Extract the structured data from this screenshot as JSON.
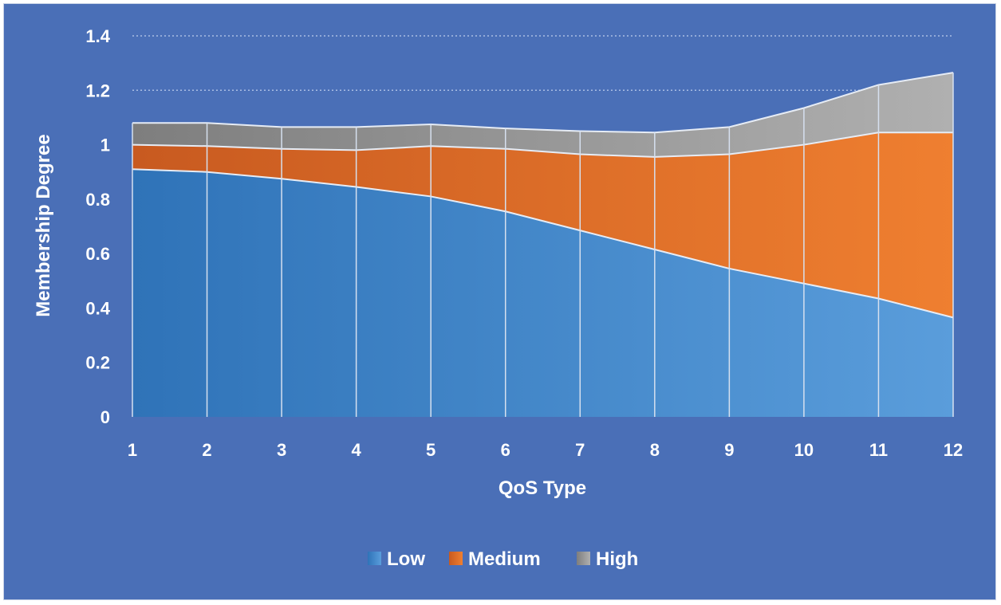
{
  "chart_data": {
    "type": "area",
    "stacked": true,
    "title": "",
    "xlabel": "QoS Type",
    "ylabel": "Membership Degree",
    "categories": [
      "1",
      "2",
      "3",
      "4",
      "5",
      "6",
      "7",
      "8",
      "9",
      "10",
      "11",
      "12"
    ],
    "ylim": [
      0,
      1.4
    ],
    "yticks": [
      "0",
      "0.2",
      "0.4",
      "0.6",
      "0.8",
      "1",
      "1.2",
      "1.4"
    ],
    "grid": true,
    "legend_position": "bottom",
    "series": [
      {
        "name": "Low",
        "color": "#4a8fd6",
        "values": [
          0.91,
          0.9,
          0.875,
          0.845,
          0.81,
          0.755,
          0.685,
          0.615,
          0.545,
          0.49,
          0.435,
          0.365
        ]
      },
      {
        "name": "Medium",
        "color": "#e8732a",
        "values": [
          0.09,
          0.095,
          0.11,
          0.135,
          0.185,
          0.23,
          0.28,
          0.34,
          0.42,
          0.51,
          0.61,
          0.68
        ]
      },
      {
        "name": "High",
        "color": "#9a9a9a",
        "values": [
          0.08,
          0.085,
          0.08,
          0.085,
          0.08,
          0.075,
          0.085,
          0.09,
          0.1,
          0.135,
          0.175,
          0.22
        ]
      }
    ]
  }
}
